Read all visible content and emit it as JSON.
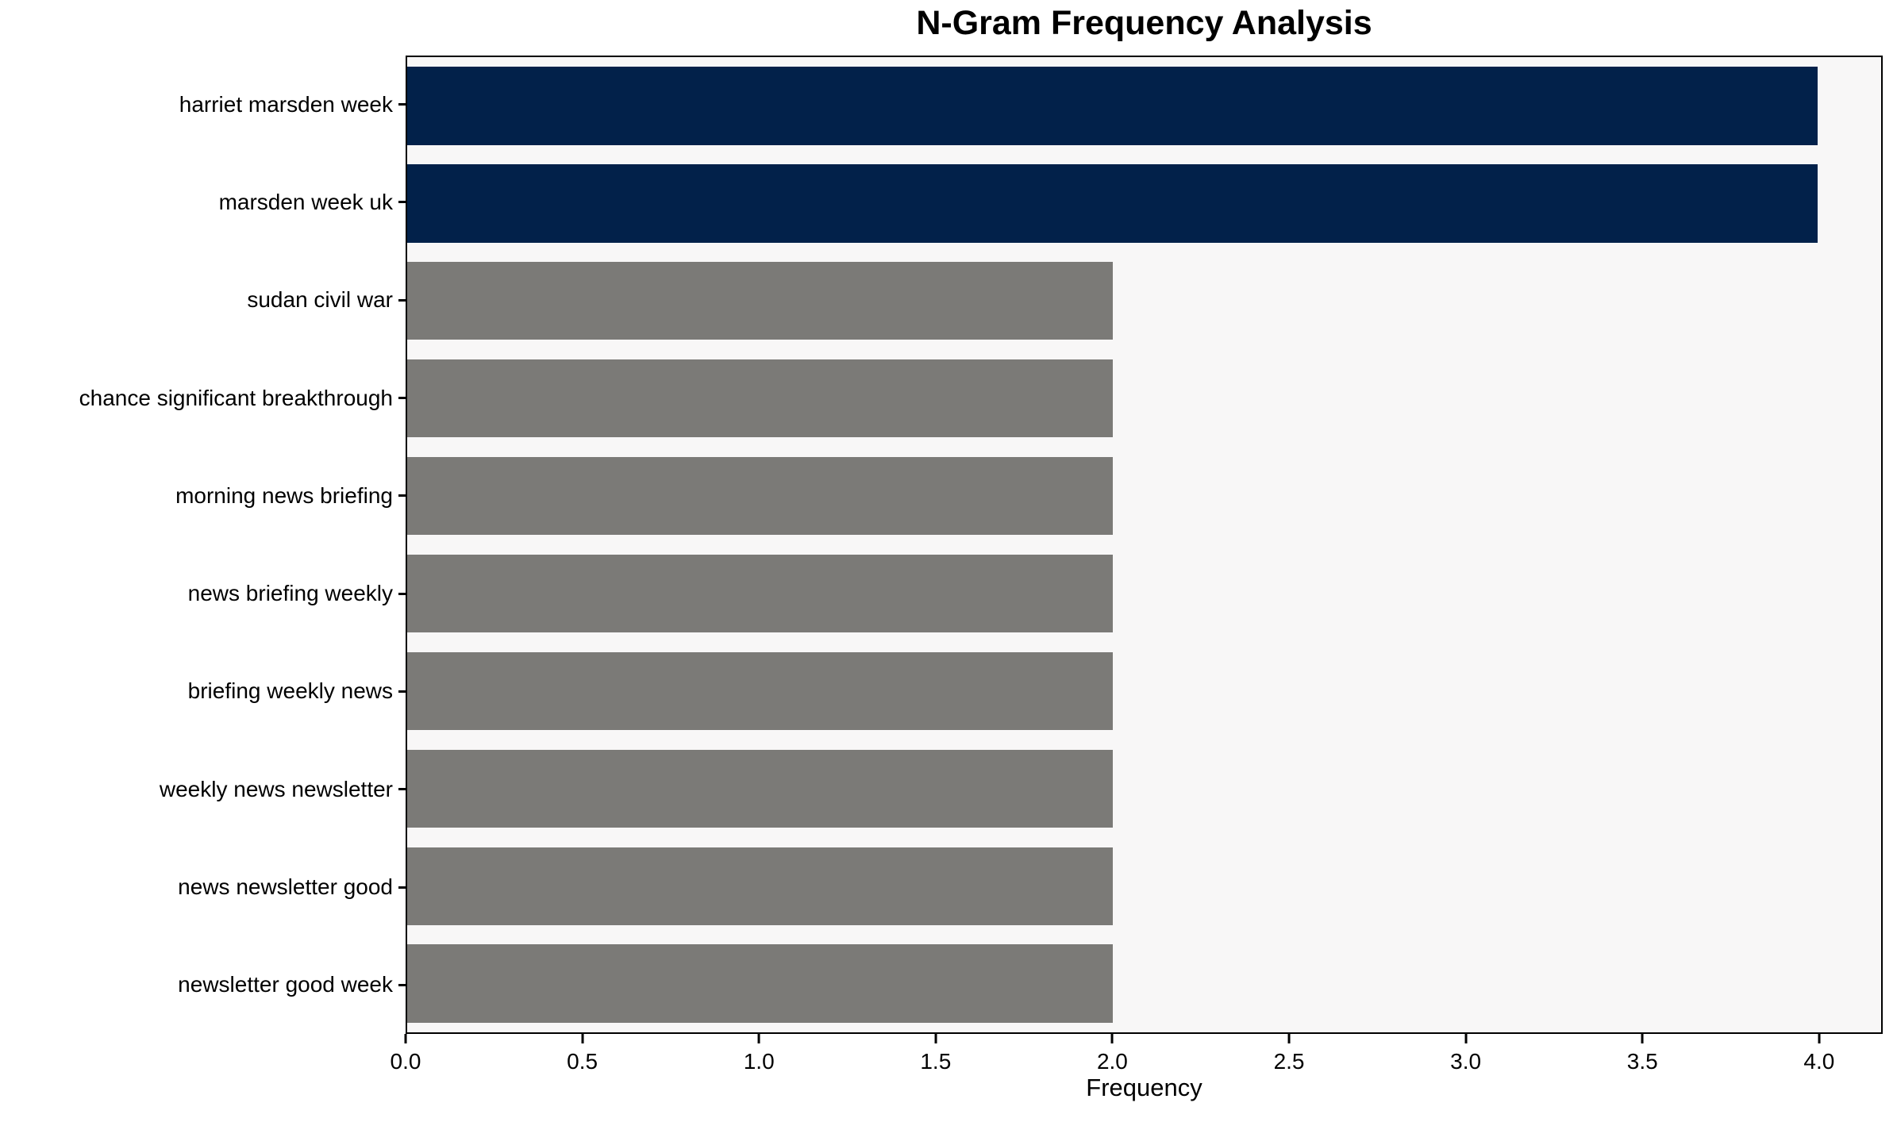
{
  "title": "N-Gram Frequency Analysis",
  "chart_data": {
    "type": "bar",
    "orientation": "horizontal",
    "title": "N-Gram Frequency Analysis",
    "xlabel": "Frequency",
    "ylabel": "",
    "categories": [
      "harriet marsden week",
      "marsden week uk",
      "sudan civil war",
      "chance significant breakthrough",
      "morning news briefing",
      "news briefing weekly",
      "briefing weekly news",
      "weekly news newsletter",
      "news newsletter good",
      "newsletter good week"
    ],
    "values": [
      4,
      4,
      2,
      2,
      2,
      2,
      2,
      2,
      2,
      2
    ],
    "bar_colors": [
      "#02214a",
      "#02214a",
      "#7b7a77",
      "#7b7a77",
      "#7b7a77",
      "#7b7a77",
      "#7b7a77",
      "#7b7a77",
      "#7b7a77",
      "#7b7a77"
    ],
    "xlim": [
      0,
      4.18
    ],
    "x_ticks": [
      0.0,
      0.5,
      1.0,
      1.5,
      2.0,
      2.5,
      3.0,
      3.5,
      4.0
    ],
    "x_tick_labels": [
      "0.0",
      "0.5",
      "1.0",
      "1.5",
      "2.0",
      "2.5",
      "3.0",
      "3.5",
      "4.0"
    ],
    "grid": false,
    "legend_position": "none",
    "colors": {
      "highlight_bar": "#02214a",
      "default_bar": "#7b7a77",
      "plot_background": "#f8f7f7",
      "figure_background": "#ffffff",
      "axis": "#000000"
    }
  }
}
